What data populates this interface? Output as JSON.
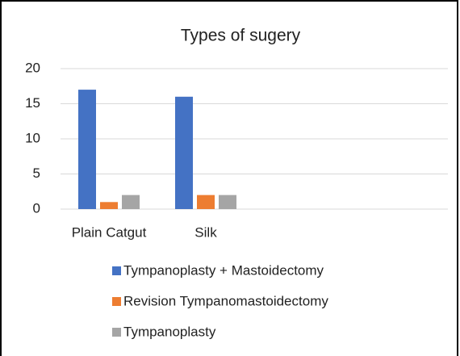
{
  "chart_data": {
    "type": "bar",
    "title": "Types of sugery",
    "categories": [
      "Plain Catgut",
      "Silk",
      null,
      null
    ],
    "series": [
      {
        "name": "Tympanoplasty + Mastoidectomy",
        "color": "#4472c4",
        "values": [
          17,
          16,
          null,
          null
        ]
      },
      {
        "name": "Revision Tympanomastoidectomy",
        "color": "#ed7d31",
        "values": [
          1,
          2,
          null,
          null
        ]
      },
      {
        "name": "Tympanoplasty",
        "color": "#a5a5a5",
        "values": [
          2,
          2,
          null,
          null
        ]
      }
    ],
    "ylim": [
      0,
      20
    ],
    "yticks": [
      0,
      5,
      10,
      15,
      20
    ],
    "grid": true,
    "legend": "bottom"
  }
}
